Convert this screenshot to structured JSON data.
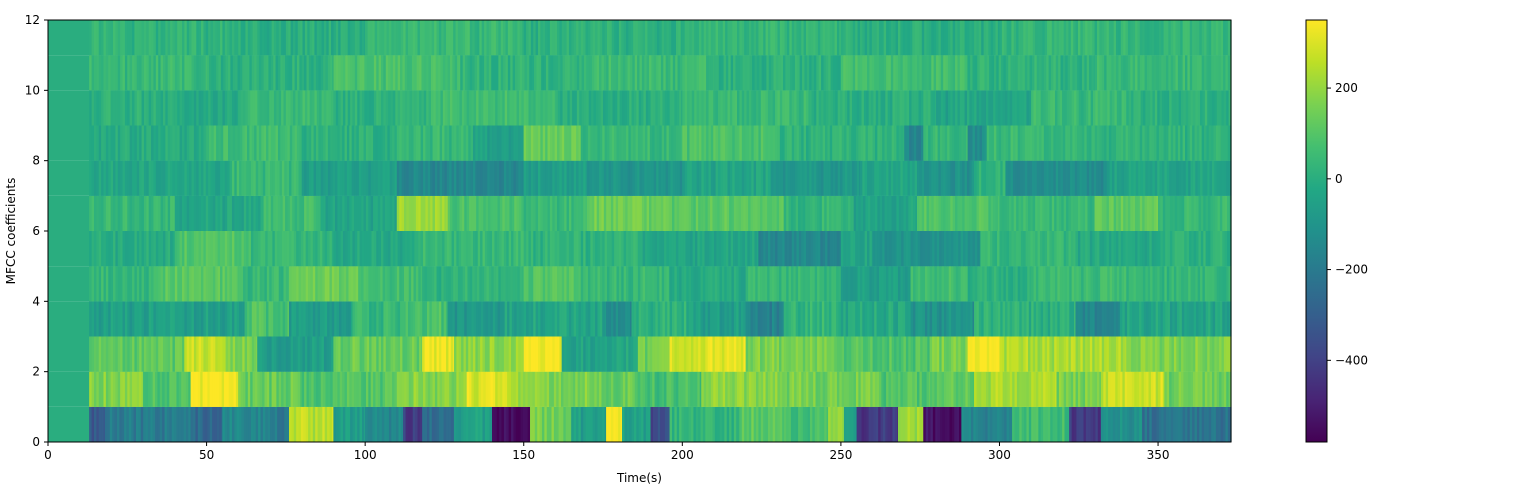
{
  "chart_data": {
    "type": "heatmap",
    "title": "",
    "xlabel": "Time(s)",
    "ylabel": "MFCC coefficients",
    "xlim": [
      0,
      373
    ],
    "ylim": [
      0,
      12
    ],
    "x_ticks": [
      0,
      50,
      100,
      150,
      200,
      250,
      300,
      350
    ],
    "y_ticks": [
      0,
      2,
      4,
      6,
      8,
      10,
      12
    ],
    "colorbar": {
      "colormap": "viridis",
      "range": [
        -580,
        350
      ],
      "ticks": [
        200,
        0,
        -200,
        -400
      ],
      "tick_labels": [
        "200",
        "0",
        "−200",
        "−400"
      ]
    },
    "grid": false,
    "rows": [
      {
        "coefficient": 0,
        "y_range": [
          0,
          1
        ],
        "baseline": -230,
        "segments": [
          [
            0,
            13,
            0
          ],
          [
            13,
            18,
            -330
          ],
          [
            18,
            45,
            -200
          ],
          [
            45,
            55,
            -260
          ],
          [
            55,
            70,
            -150
          ],
          [
            70,
            76,
            -200
          ],
          [
            76,
            90,
            250
          ],
          [
            90,
            100,
            -60
          ],
          [
            100,
            112,
            -150
          ],
          [
            112,
            118,
            -420
          ],
          [
            118,
            128,
            -250
          ],
          [
            128,
            140,
            -60
          ],
          [
            140,
            152,
            -560
          ],
          [
            152,
            165,
            150
          ],
          [
            165,
            176,
            -60
          ],
          [
            176,
            181,
            330
          ],
          [
            181,
            190,
            -60
          ],
          [
            190,
            196,
            -380
          ],
          [
            196,
            218,
            30
          ],
          [
            218,
            232,
            120
          ],
          [
            232,
            246,
            60
          ],
          [
            246,
            251,
            230
          ],
          [
            251,
            255,
            -60
          ],
          [
            255,
            268,
            -430
          ],
          [
            268,
            276,
            200
          ],
          [
            276,
            288,
            -540
          ],
          [
            288,
            304,
            -160
          ],
          [
            304,
            322,
            60
          ],
          [
            322,
            332,
            -430
          ],
          [
            332,
            345,
            -120
          ],
          [
            345,
            373,
            -230
          ]
        ]
      },
      {
        "coefficient": 1,
        "y_range": [
          1,
          2
        ],
        "baseline": 140,
        "segments": [
          [
            0,
            13,
            0
          ],
          [
            13,
            30,
            170
          ],
          [
            30,
            45,
            90
          ],
          [
            45,
            60,
            340
          ],
          [
            60,
            80,
            130
          ],
          [
            80,
            110,
            90
          ],
          [
            110,
            132,
            180
          ],
          [
            132,
            146,
            300
          ],
          [
            146,
            158,
            210
          ],
          [
            158,
            170,
            170
          ],
          [
            170,
            186,
            130
          ],
          [
            186,
            206,
            70
          ],
          [
            206,
            230,
            190
          ],
          [
            230,
            262,
            150
          ],
          [
            262,
            278,
            90
          ],
          [
            278,
            292,
            130
          ],
          [
            292,
            318,
            230
          ],
          [
            318,
            332,
            160
          ],
          [
            332,
            352,
            280
          ],
          [
            352,
            373,
            140
          ]
        ]
      },
      {
        "coefficient": 2,
        "y_range": [
          2,
          3
        ],
        "baseline": 170,
        "segments": [
          [
            0,
            13,
            0
          ],
          [
            13,
            43,
            110
          ],
          [
            43,
            56,
            280
          ],
          [
            56,
            66,
            170
          ],
          [
            66,
            90,
            -60
          ],
          [
            90,
            118,
            130
          ],
          [
            118,
            128,
            330
          ],
          [
            128,
            150,
            190
          ],
          [
            150,
            162,
            340
          ],
          [
            162,
            186,
            -40
          ],
          [
            186,
            196,
            140
          ],
          [
            196,
            220,
            300
          ],
          [
            220,
            248,
            160
          ],
          [
            248,
            278,
            90
          ],
          [
            278,
            290,
            150
          ],
          [
            290,
            300,
            350
          ],
          [
            300,
            340,
            230
          ],
          [
            340,
            373,
            170
          ]
        ]
      },
      {
        "coefficient": 3,
        "y_range": [
          3,
          4
        ],
        "baseline": -50,
        "segments": [
          [
            0,
            13,
            0
          ],
          [
            13,
            62,
            -60
          ],
          [
            62,
            76,
            80
          ],
          [
            76,
            96,
            -70
          ],
          [
            96,
            112,
            30
          ],
          [
            112,
            126,
            80
          ],
          [
            126,
            144,
            -90
          ],
          [
            144,
            176,
            -40
          ],
          [
            176,
            184,
            -150
          ],
          [
            184,
            202,
            10
          ],
          [
            202,
            220,
            -60
          ],
          [
            220,
            232,
            -170
          ],
          [
            232,
            250,
            30
          ],
          [
            250,
            272,
            -20
          ],
          [
            272,
            292,
            -110
          ],
          [
            292,
            324,
            10
          ],
          [
            324,
            338,
            -150
          ],
          [
            338,
            373,
            -40
          ]
        ]
      },
      {
        "coefficient": 4,
        "y_range": [
          4,
          5
        ],
        "baseline": 30,
        "segments": [
          [
            0,
            13,
            0
          ],
          [
            13,
            34,
            40
          ],
          [
            34,
            60,
            110
          ],
          [
            60,
            76,
            40
          ],
          [
            76,
            98,
            140
          ],
          [
            98,
            118,
            60
          ],
          [
            118,
            150,
            20
          ],
          [
            150,
            168,
            90
          ],
          [
            168,
            196,
            40
          ],
          [
            196,
            220,
            -20
          ],
          [
            220,
            250,
            40
          ],
          [
            250,
            272,
            -60
          ],
          [
            272,
            290,
            60
          ],
          [
            290,
            310,
            10
          ],
          [
            310,
            340,
            50
          ],
          [
            340,
            373,
            30
          ]
        ]
      },
      {
        "coefficient": 5,
        "y_range": [
          5,
          6
        ],
        "baseline": 10,
        "segments": [
          [
            0,
            13,
            0
          ],
          [
            13,
            40,
            -10
          ],
          [
            40,
            64,
            90
          ],
          [
            64,
            90,
            30
          ],
          [
            90,
            116,
            -20
          ],
          [
            116,
            150,
            40
          ],
          [
            150,
            186,
            20
          ],
          [
            186,
            224,
            -30
          ],
          [
            224,
            250,
            -150
          ],
          [
            250,
            260,
            -40
          ],
          [
            260,
            294,
            -110
          ],
          [
            294,
            324,
            30
          ],
          [
            324,
            350,
            -20
          ],
          [
            350,
            373,
            10
          ]
        ]
      },
      {
        "coefficient": 6,
        "y_range": [
          6,
          7
        ],
        "baseline": 40,
        "segments": [
          [
            0,
            13,
            0
          ],
          [
            13,
            40,
            40
          ],
          [
            40,
            68,
            -30
          ],
          [
            68,
            86,
            60
          ],
          [
            86,
            110,
            -40
          ],
          [
            110,
            126,
            210
          ],
          [
            126,
            150,
            80
          ],
          [
            150,
            170,
            40
          ],
          [
            170,
            196,
            140
          ],
          [
            196,
            232,
            110
          ],
          [
            232,
            254,
            30
          ],
          [
            254,
            274,
            -40
          ],
          [
            274,
            300,
            90
          ],
          [
            300,
            330,
            40
          ],
          [
            330,
            350,
            120
          ],
          [
            350,
            373,
            40
          ]
        ]
      },
      {
        "coefficient": 7,
        "y_range": [
          7,
          8
        ],
        "baseline": -40,
        "segments": [
          [
            0,
            13,
            0
          ],
          [
            13,
            58,
            -30
          ],
          [
            58,
            80,
            40
          ],
          [
            80,
            110,
            -60
          ],
          [
            110,
            150,
            -150
          ],
          [
            150,
            170,
            -60
          ],
          [
            170,
            200,
            -100
          ],
          [
            200,
            228,
            -40
          ],
          [
            228,
            256,
            -90
          ],
          [
            256,
            274,
            -30
          ],
          [
            274,
            292,
            -110
          ],
          [
            292,
            302,
            20
          ],
          [
            302,
            334,
            -130
          ],
          [
            334,
            373,
            -40
          ]
        ]
      },
      {
        "coefficient": 8,
        "y_range": [
          8,
          9
        ],
        "baseline": 30,
        "segments": [
          [
            0,
            13,
            0
          ],
          [
            13,
            50,
            -10
          ],
          [
            50,
            80,
            60
          ],
          [
            80,
            110,
            10
          ],
          [
            110,
            134,
            40
          ],
          [
            134,
            150,
            -50
          ],
          [
            150,
            168,
            130
          ],
          [
            168,
            200,
            40
          ],
          [
            200,
            230,
            80
          ],
          [
            230,
            270,
            20
          ],
          [
            270,
            276,
            -150
          ],
          [
            276,
            290,
            40
          ],
          [
            290,
            296,
            -130
          ],
          [
            296,
            330,
            40
          ],
          [
            330,
            373,
            20
          ]
        ]
      },
      {
        "coefficient": 9,
        "y_range": [
          9,
          10
        ],
        "baseline": 20,
        "segments": [
          [
            0,
            13,
            0
          ],
          [
            13,
            40,
            10
          ],
          [
            40,
            60,
            -20
          ],
          [
            60,
            90,
            50
          ],
          [
            90,
            120,
            10
          ],
          [
            120,
            160,
            60
          ],
          [
            160,
            200,
            0
          ],
          [
            200,
            240,
            40
          ],
          [
            240,
            280,
            0
          ],
          [
            280,
            310,
            -40
          ],
          [
            310,
            340,
            40
          ],
          [
            340,
            373,
            10
          ]
        ]
      },
      {
        "coefficient": 10,
        "y_range": [
          10,
          11
        ],
        "baseline": 30,
        "segments": [
          [
            0,
            13,
            0
          ],
          [
            13,
            50,
            40
          ],
          [
            50,
            90,
            10
          ],
          [
            90,
            130,
            70
          ],
          [
            130,
            170,
            20
          ],
          [
            170,
            210,
            50
          ],
          [
            210,
            250,
            10
          ],
          [
            250,
            290,
            60
          ],
          [
            290,
            330,
            20
          ],
          [
            330,
            373,
            40
          ]
        ]
      },
      {
        "coefficient": 11,
        "y_range": [
          11,
          12
        ],
        "baseline": 20,
        "segments": [
          [
            0,
            13,
            0
          ],
          [
            13,
            60,
            20
          ],
          [
            60,
            100,
            0
          ],
          [
            100,
            150,
            40
          ],
          [
            150,
            200,
            10
          ],
          [
            200,
            250,
            30
          ],
          [
            250,
            300,
            0
          ],
          [
            300,
            373,
            30
          ]
        ]
      }
    ]
  }
}
